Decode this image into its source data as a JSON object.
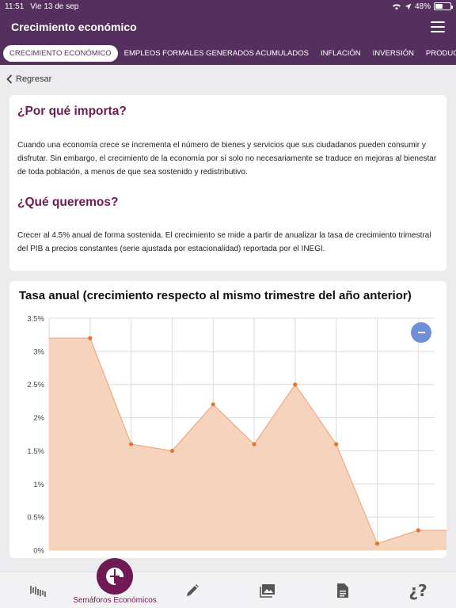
{
  "status": {
    "time": "11:51",
    "date": "Vie 13 de sep",
    "battery": "48%",
    "battery_level": 0.48
  },
  "app": {
    "title": "Crecimiento económico"
  },
  "tabs": [
    {
      "label": "CRECIMIENTO ECONÓMICO"
    },
    {
      "label": "EMPLEOS FORMALES GENERADOS ACUMULADOS"
    },
    {
      "label": "INFLACIÓN"
    },
    {
      "label": "INVERSIÓN"
    },
    {
      "label": "PRODUCTIVIDAD"
    }
  ],
  "nav": {
    "back_label": "Regresar"
  },
  "info": {
    "q1": "¿Por qué importa?",
    "p1": "Cuando una economía crece se incrementa el número de bienes y servicios que sus ciudadanos pueden consumir y disfrutar. Sin embargo, el crecimiento de la economía por sí solo no necesariamente se traduce en mejoras al bienestar de toda población, a menos de que sea sostenido y redistributivo.",
    "q2": "¿Qué queremos?",
    "p2": "Crecer al 4.5% anual de forma sostenida.  El crecimiento se mide a partir de anualizar la tasa de crecimiento trimestral del PIB a precios constantes (serie ajustada por estacionalidad) reportada por el INEGI."
  },
  "chart_data": {
    "type": "area",
    "title": "Tasa anual (crecimiento respecto al mismo trimestre del año anterior)",
    "y_ticks": [
      "3.5%",
      "3%",
      "2.5%",
      "2%",
      "1.5%",
      "1%",
      "0.5%",
      "0%"
    ],
    "ylim": [
      0,
      3.5
    ],
    "xlim": [
      0,
      9.4
    ],
    "x_start_value": 3.2,
    "x": [
      1,
      2,
      3,
      4,
      5,
      6,
      7,
      8,
      9,
      9.75
    ],
    "values": [
      3.2,
      1.6,
      1.5,
      2.2,
      1.6,
      2.5,
      1.6,
      0.1,
      0.3,
      0.3
    ],
    "grid": true,
    "fill_color": "#f5d3bd",
    "line_color": "#f3a97f",
    "point_color": "#e8732e"
  },
  "bottom_nav": {
    "active_label": "Semáforos Económicos",
    "items": [
      "indicators-icon",
      "semaforos-icon",
      "pencil-icon",
      "image-gallery-icon",
      "document-icon",
      "question-icon"
    ]
  },
  "colors": {
    "primary": "#55305f",
    "accent": "#6f1a52",
    "button_blue": "#6f8fd8"
  }
}
